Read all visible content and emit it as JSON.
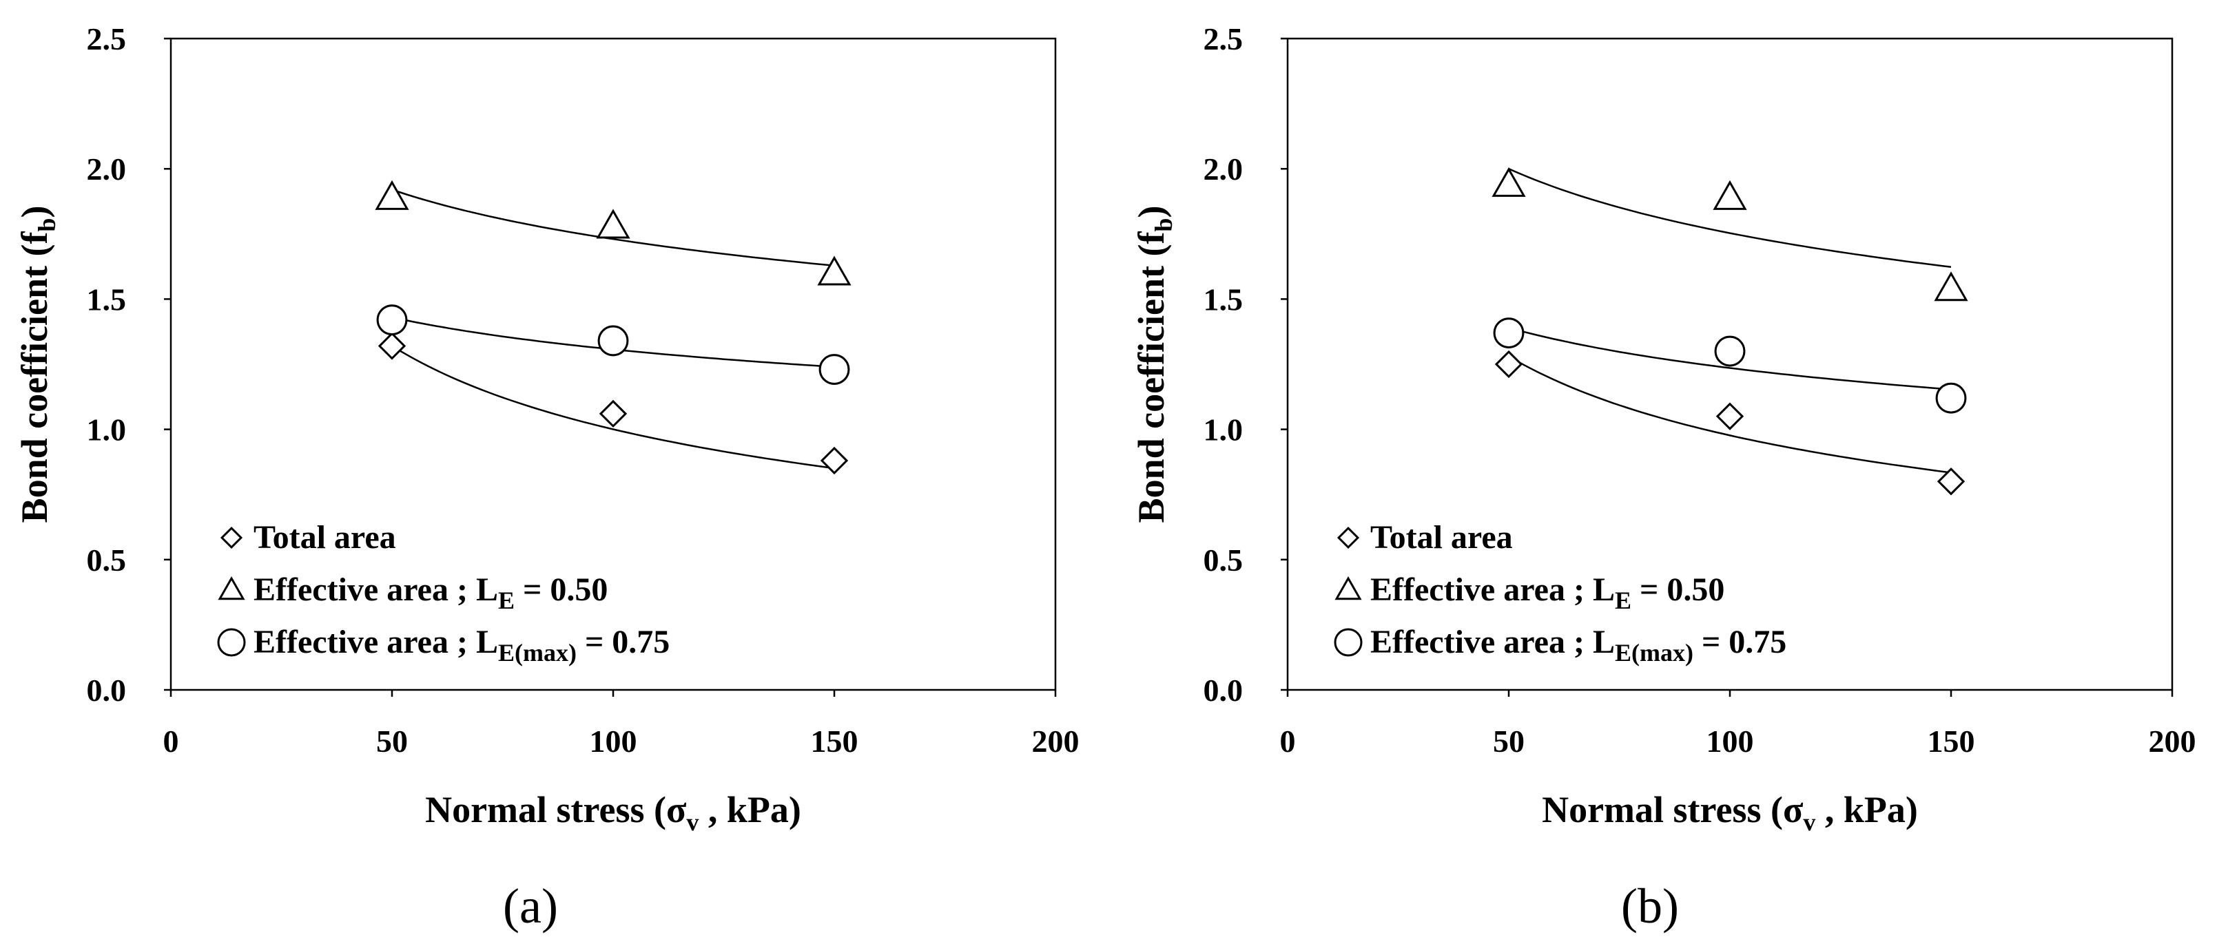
{
  "chart_data": [
    {
      "type": "scatter",
      "panel_label": "(a)",
      "xlabel": "Normal stress (σ",
      "xlabel_sub": "v",
      "xlabel_end": " , kPa)",
      "ylabel": "Bond coefficient  (f",
      "ylabel_sub": "b",
      "ylabel_end": ")",
      "xlim": [
        0,
        200
      ],
      "ylim": [
        0,
        2.5
      ],
      "xticks": [
        "0",
        "50",
        "100",
        "150",
        "200"
      ],
      "yticks": [
        "0.0",
        "0.5",
        "1.0",
        "1.5",
        "2.0",
        "2.5"
      ],
      "grid": false,
      "legend_position": "bottom-left",
      "series": [
        {
          "name": "Total area",
          "marker": "diamond",
          "x": [
            50,
            100,
            150
          ],
          "y": [
            1.32,
            1.06,
            0.88
          ],
          "fit": {
            "a": 1.32,
            "b": 0.4
          }
        },
        {
          "name": "Effective area  ; L",
          "name_sub": "E",
          "name_end": " = 0.50",
          "marker": "triangle",
          "x": [
            50,
            100,
            150
          ],
          "y": [
            1.89,
            1.78,
            1.6
          ],
          "fit": {
            "a": 1.92,
            "b": 0.15
          }
        },
        {
          "name": "Effective area  ; L",
          "name_sub": "E(max)",
          "name_end": " = 0.75",
          "marker": "circle",
          "x": [
            50,
            100,
            150
          ],
          "y": [
            1.42,
            1.34,
            1.23
          ],
          "fit": {
            "a": 1.43,
            "b": 0.13
          }
        }
      ]
    },
    {
      "type": "scatter",
      "panel_label": "(b)",
      "xlabel": "Normal stress (σ",
      "xlabel_sub": "v",
      "xlabel_end": " , kPa)",
      "ylabel": "Bond coefficient  (f",
      "ylabel_sub": "b",
      "ylabel_end": ")",
      "xlim": [
        0,
        200
      ],
      "ylim": [
        0,
        2.5
      ],
      "xticks": [
        "0",
        "50",
        "100",
        "150",
        "200"
      ],
      "yticks": [
        "0.0",
        "0.5",
        "1.0",
        "1.5",
        "2.0",
        "2.5"
      ],
      "grid": false,
      "legend_position": "bottom-left",
      "series": [
        {
          "name": "Total area",
          "marker": "diamond",
          "x": [
            50,
            100,
            150
          ],
          "y": [
            1.25,
            1.05,
            0.8
          ],
          "fit": {
            "a": 1.28,
            "b": 0.39
          }
        },
        {
          "name": "Effective area  ; L",
          "name_sub": "E",
          "name_end": " = 0.50",
          "marker": "triangle",
          "x": [
            50,
            100,
            150
          ],
          "y": [
            1.94,
            1.89,
            1.54
          ],
          "fit": {
            "a": 2.0,
            "b": 0.19
          }
        },
        {
          "name": "Effective area  ; L",
          "name_sub": "E(max)",
          "name_end": " = 0.75",
          "marker": "circle",
          "x": [
            50,
            100,
            150
          ],
          "y": [
            1.37,
            1.3,
            1.12
          ],
          "fit": {
            "a": 1.39,
            "b": 0.17
          }
        }
      ]
    }
  ]
}
